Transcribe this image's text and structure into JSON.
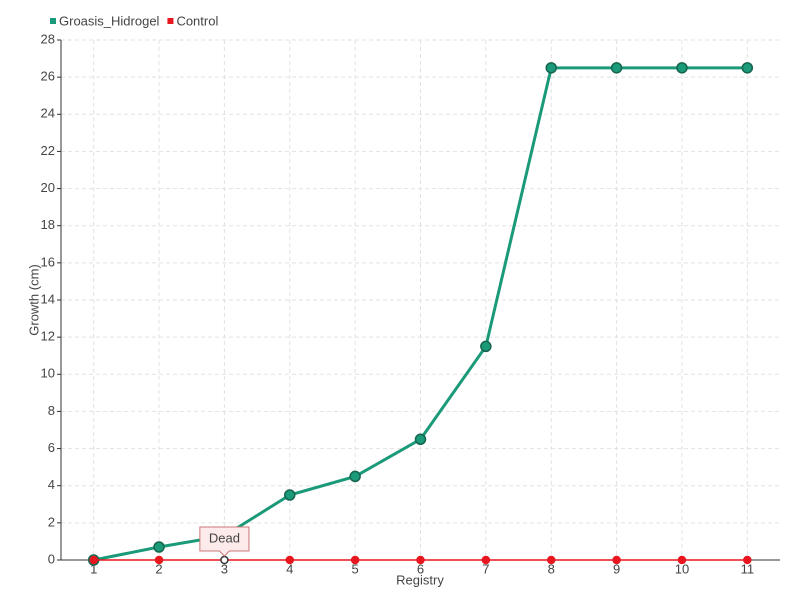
{
  "chart_data": {
    "type": "line",
    "categories": [
      "1",
      "2",
      "3",
      "4",
      "5",
      "6",
      "7",
      "8",
      "9",
      "10",
      "11"
    ],
    "series": [
      {
        "name": "Groasis_Hidrogel",
        "color": "#1a9a78",
        "values": [
          0,
          0.7,
          1.3,
          3.5,
          4.5,
          6.5,
          11.5,
          26.5,
          26.5,
          26.5,
          26.5
        ]
      },
      {
        "name": "Control",
        "color": "#e8161e",
        "values": [
          0,
          0,
          0,
          0,
          0,
          0,
          0,
          0,
          0,
          0,
          0
        ]
      }
    ],
    "ylim": [
      0,
      28
    ],
    "yticks": [
      0,
      2,
      4,
      6,
      8,
      10,
      12,
      14,
      16,
      18,
      20,
      22,
      24,
      26,
      28
    ],
    "xlabel": "Registry",
    "ylabel": "Growth (cm)",
    "grid": true,
    "legend": "top-left",
    "annotations": [
      {
        "text": "Dead",
        "x": "3",
        "y": 0
      }
    ]
  }
}
